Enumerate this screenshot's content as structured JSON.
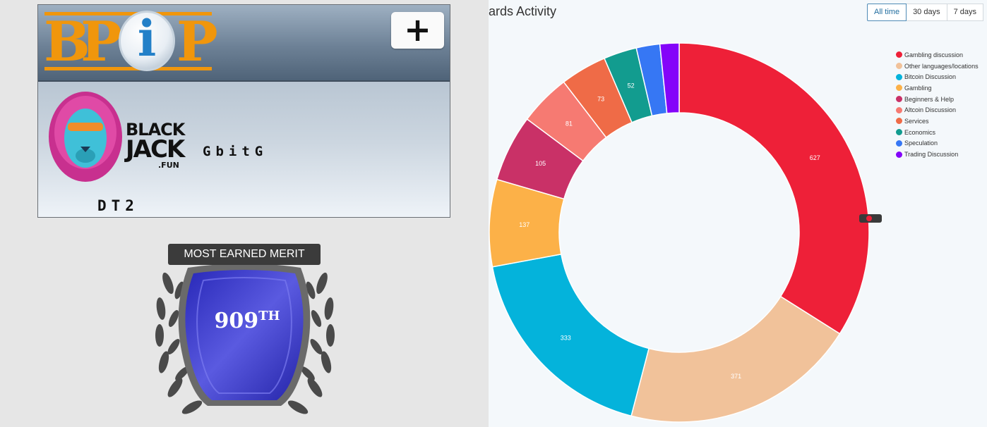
{
  "left": {
    "logo": {
      "letters": [
        "B",
        "P",
        "i",
        "P"
      ]
    },
    "plus_label": "+",
    "sponsor": {
      "line1": "BLACK",
      "line2": "JACK",
      "line3": ".FUN"
    },
    "username": "GbitG",
    "rank_title": "DT2",
    "badge": {
      "title": "MOST EARNED MERIT",
      "rank": "909",
      "suffix": "TH"
    }
  },
  "header": {
    "title": "ards Activity",
    "tabs": [
      {
        "label": "All time",
        "active": true
      },
      {
        "label": "30 days"
      },
      {
        "label": "7 days"
      }
    ]
  },
  "chart_data": {
    "type": "pie",
    "title": "ards Activity",
    "donut": true,
    "legend_position": "top-right",
    "categories": [
      "Gambling discussion",
      "Other languages/locations",
      "Bitcoin Discussion",
      "Gambling",
      "Beginners & Help",
      "Altcoin Discussion",
      "Services",
      "Economics",
      "Speculation",
      "Trading Discussion"
    ],
    "values": [
      627,
      371,
      333,
      137,
      105,
      81,
      73,
      52,
      37,
      30
    ],
    "labels": [
      "627",
      "371",
      "333",
      "137",
      "105",
      "81",
      "73",
      "52",
      "",
      ""
    ],
    "colors": [
      "#ee2038",
      "#f1c29a",
      "#04b3db",
      "#fcb148",
      "#c93167",
      "#f67a72",
      "#ef6b47",
      "#129c8f",
      "#3677f4",
      "#8404f9"
    ]
  },
  "colors": {
    "logo_orange": "#f0960c",
    "badge_blue": "#3535c8",
    "active_tab": "#1f6c9e"
  },
  "icons": {
    "plus": "plus-icon",
    "lion": "lion-logo-icon",
    "logo_circle": "bpip-circle-icon",
    "laurel": "laurel-wreath-icon",
    "shield": "shield-icon"
  }
}
